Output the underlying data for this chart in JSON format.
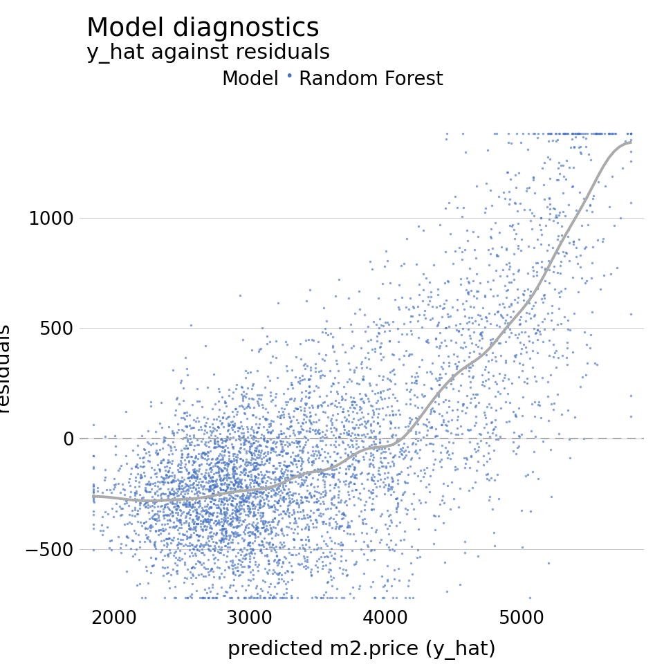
{
  "title_main": "Model diagnostics",
  "title_sub": "y_hat against residuals",
  "legend_label": "Model",
  "legend_entry": "Random Forest",
  "xlabel": "predicted m2.price (y_hat)",
  "ylabel": "residuals",
  "xlim": [
    1750,
    5900
  ],
  "ylim": [
    -750,
    1400
  ],
  "xticks": [
    2000,
    3000,
    4000,
    5000
  ],
  "yticks": [
    -500,
    0,
    500,
    1000
  ],
  "dot_color": "#4472C4",
  "dot_size": 6,
  "dot_alpha": 0.65,
  "smooth_color": "#aaaaaa",
  "smooth_lw": 2.8,
  "hline_color": "#aaaaaa",
  "hline_lw": 1.5,
  "grid_color": "#cccccc",
  "background_color": "#ffffff",
  "seed": 42,
  "n_points": 5000
}
